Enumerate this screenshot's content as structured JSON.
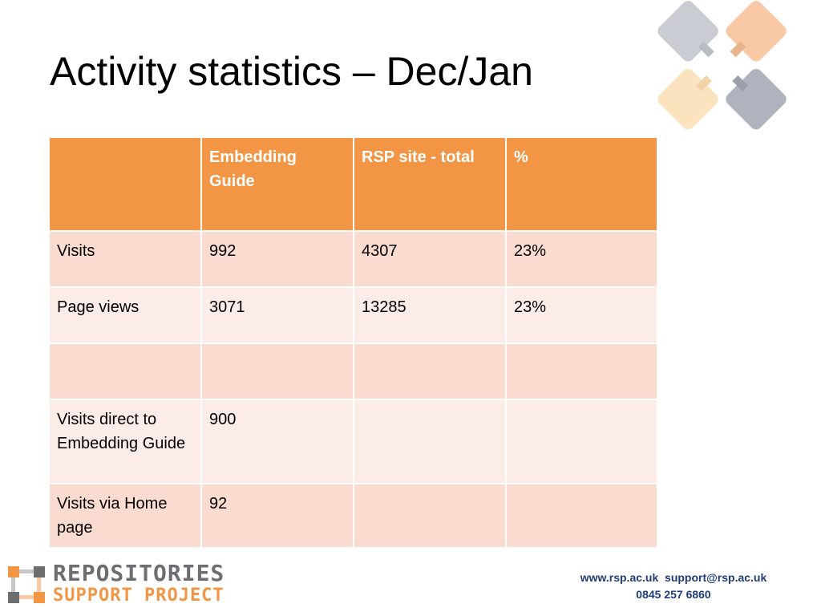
{
  "title": "Activity statistics – Dec/Jan",
  "table": {
    "headers": [
      "",
      "Embedding Guide",
      "RSP site - total",
      "%"
    ],
    "rows": [
      [
        "Visits",
        "992",
        "4307",
        "23%"
      ],
      [
        "Page views",
        "3071",
        "13285",
        "23%"
      ],
      [
        "",
        "",
        "",
        ""
      ],
      [
        "Visits direct to Embedding Guide",
        "900",
        "",
        ""
      ],
      [
        "Visits via Home page",
        "92",
        "",
        ""
      ]
    ]
  },
  "logo": {
    "line1": "REPOSITORIES",
    "line2": "SUPPORT PROJECT"
  },
  "contact": {
    "website": "www.rsp.ac.uk",
    "email": "support@rsp.ac.uk",
    "phone": "0845 257 6860"
  },
  "colors": {
    "header": "#f29646",
    "row_odd": "#f9dccf",
    "row_even": "#fbece8",
    "logo_grey": "#6d6e71",
    "logo_orange": "#f29646",
    "contact_text": "#1f3d7a"
  }
}
